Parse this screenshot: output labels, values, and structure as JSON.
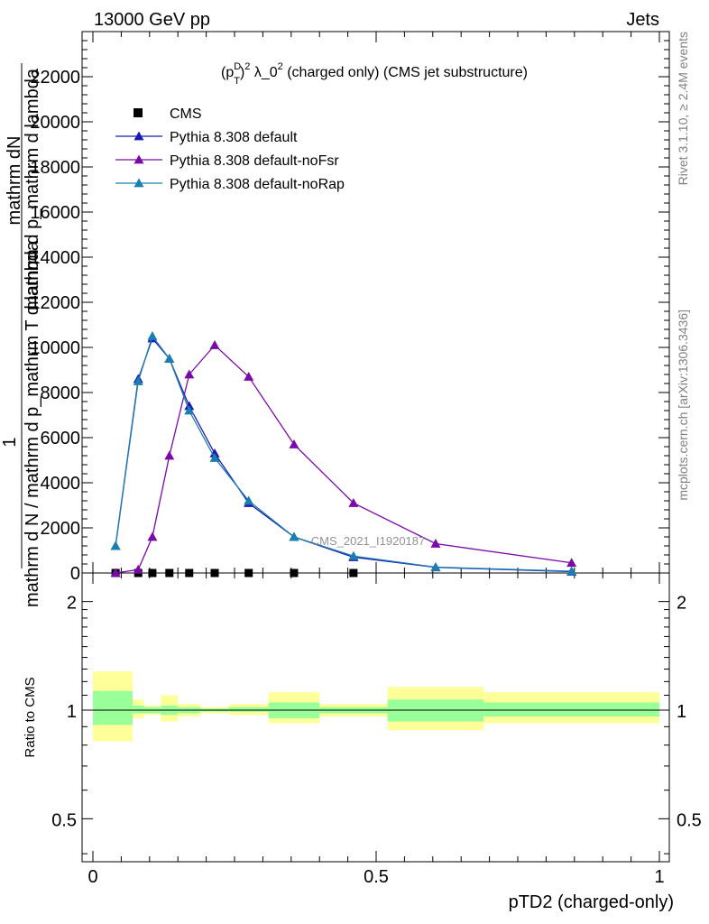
{
  "header": {
    "left": "13000 GeV pp",
    "right": "Jets"
  },
  "side_labels": {
    "rivet": "Rivet 3.1.10, ≥ 2.4M events",
    "mcplots": "mcplots.cern.ch [arXiv:1306.3436]"
  },
  "watermark": "CMS_2021_I1920187",
  "chart_data": [
    {
      "type": "line",
      "title": "(p_T^D)^2 λ_0^2 (charged only) (CMS jet substructure)",
      "title_parts": {
        "p": "(p",
        "sup_d": "D",
        "sub_t": "T",
        "close": ")",
        "sup_2": "2",
        "rest": " λ_0",
        "sup_2b": "2",
        "tail": " (charged only) (CMS jet substructure)"
      },
      "ylabel_top": "mathrm dN",
      "ylabel_top_over": "mathrm d p_mathrm d lambda",
      "ylabel_bottom": "mathrm d N / mathrm d p_mathrm T d lambda",
      "ylabel_one": "1",
      "xlim": [
        0,
        1
      ],
      "ylim": [
        0,
        24000
      ],
      "yticks": [
        0,
        2000,
        4000,
        6000,
        8000,
        10000,
        12000,
        14000,
        16000,
        18000,
        20000,
        22000
      ],
      "ytick_labels": [
        "0",
        "2000",
        "4000",
        "6000",
        "8000",
        "10000",
        "12000",
        "14000",
        "16000",
        "18000",
        "20000",
        "22000"
      ],
      "x": [
        0.04,
        0.08,
        0.105,
        0.135,
        0.17,
        0.215,
        0.275,
        0.355,
        0.46,
        0.605,
        0.845
      ],
      "series": [
        {
          "name": "CMS",
          "marker": "square",
          "color": "#000000",
          "values": [
            0,
            0,
            0,
            0,
            0,
            0,
            0,
            0,
            0,
            null,
            null
          ]
        },
        {
          "name": "Pythia 8.308 default",
          "marker": "triangle",
          "color": "#1a1ab5",
          "values": [
            1200,
            8600,
            10400,
            9500,
            7400,
            5300,
            3100,
            1600,
            700,
            250,
            60
          ]
        },
        {
          "name": "Pythia 8.308 default-noFsr",
          "marker": "triangle",
          "color": "#7a0aa8",
          "values": [
            0,
            150,
            1600,
            5200,
            8800,
            10100,
            8700,
            5700,
            3100,
            1300,
            450
          ]
        },
        {
          "name": "Pythia 8.308 default-noRap",
          "marker": "triangle",
          "color": "#1a7fb0",
          "values": [
            1200,
            8500,
            10500,
            9500,
            7200,
            5100,
            3200,
            1600,
            750,
            260,
            80
          ]
        }
      ]
    },
    {
      "type": "area",
      "ylabel": "Ratio to CMS",
      "xlabel": "pTD2 (charged-only)",
      "xlim": [
        0,
        1
      ],
      "ylim": [
        0.38,
        2.4
      ],
      "log_y": true,
      "yticks": [
        0.5,
        1,
        2
      ],
      "ytick_labels": [
        "0.5",
        "1",
        "2"
      ],
      "xticks": [
        0,
        0.5,
        1
      ],
      "xtick_labels": [
        "0",
        "0.5",
        "1"
      ],
      "bins": [
        [
          0.0,
          0.07
        ],
        [
          0.07,
          0.09
        ],
        [
          0.09,
          0.12
        ],
        [
          0.12,
          0.15
        ],
        [
          0.15,
          0.19
        ],
        [
          0.19,
          0.24
        ],
        [
          0.24,
          0.31
        ],
        [
          0.31,
          0.4
        ],
        [
          0.4,
          0.52
        ],
        [
          0.52,
          0.69
        ],
        [
          0.69,
          1.0
        ]
      ],
      "stat_band": [
        [
          0.91,
          1.13
        ],
        [
          0.98,
          1.03
        ],
        [
          0.98,
          1.02
        ],
        [
          0.97,
          1.03
        ],
        [
          0.98,
          1.02
        ],
        [
          0.99,
          1.01
        ],
        [
          0.99,
          1.02
        ],
        [
          0.95,
          1.05
        ],
        [
          0.98,
          1.02
        ],
        [
          0.93,
          1.07
        ],
        [
          0.96,
          1.05
        ]
      ],
      "syst_band": [
        [
          0.82,
          1.28
        ],
        [
          0.95,
          1.07
        ],
        [
          0.97,
          1.03
        ],
        [
          0.93,
          1.1
        ],
        [
          0.96,
          1.04
        ],
        [
          0.98,
          1.02
        ],
        [
          0.97,
          1.04
        ],
        [
          0.92,
          1.12
        ],
        [
          0.96,
          1.04
        ],
        [
          0.88,
          1.16
        ],
        [
          0.92,
          1.12
        ]
      ],
      "stat_color": "#99ff99",
      "syst_color": "#ffff99"
    }
  ]
}
